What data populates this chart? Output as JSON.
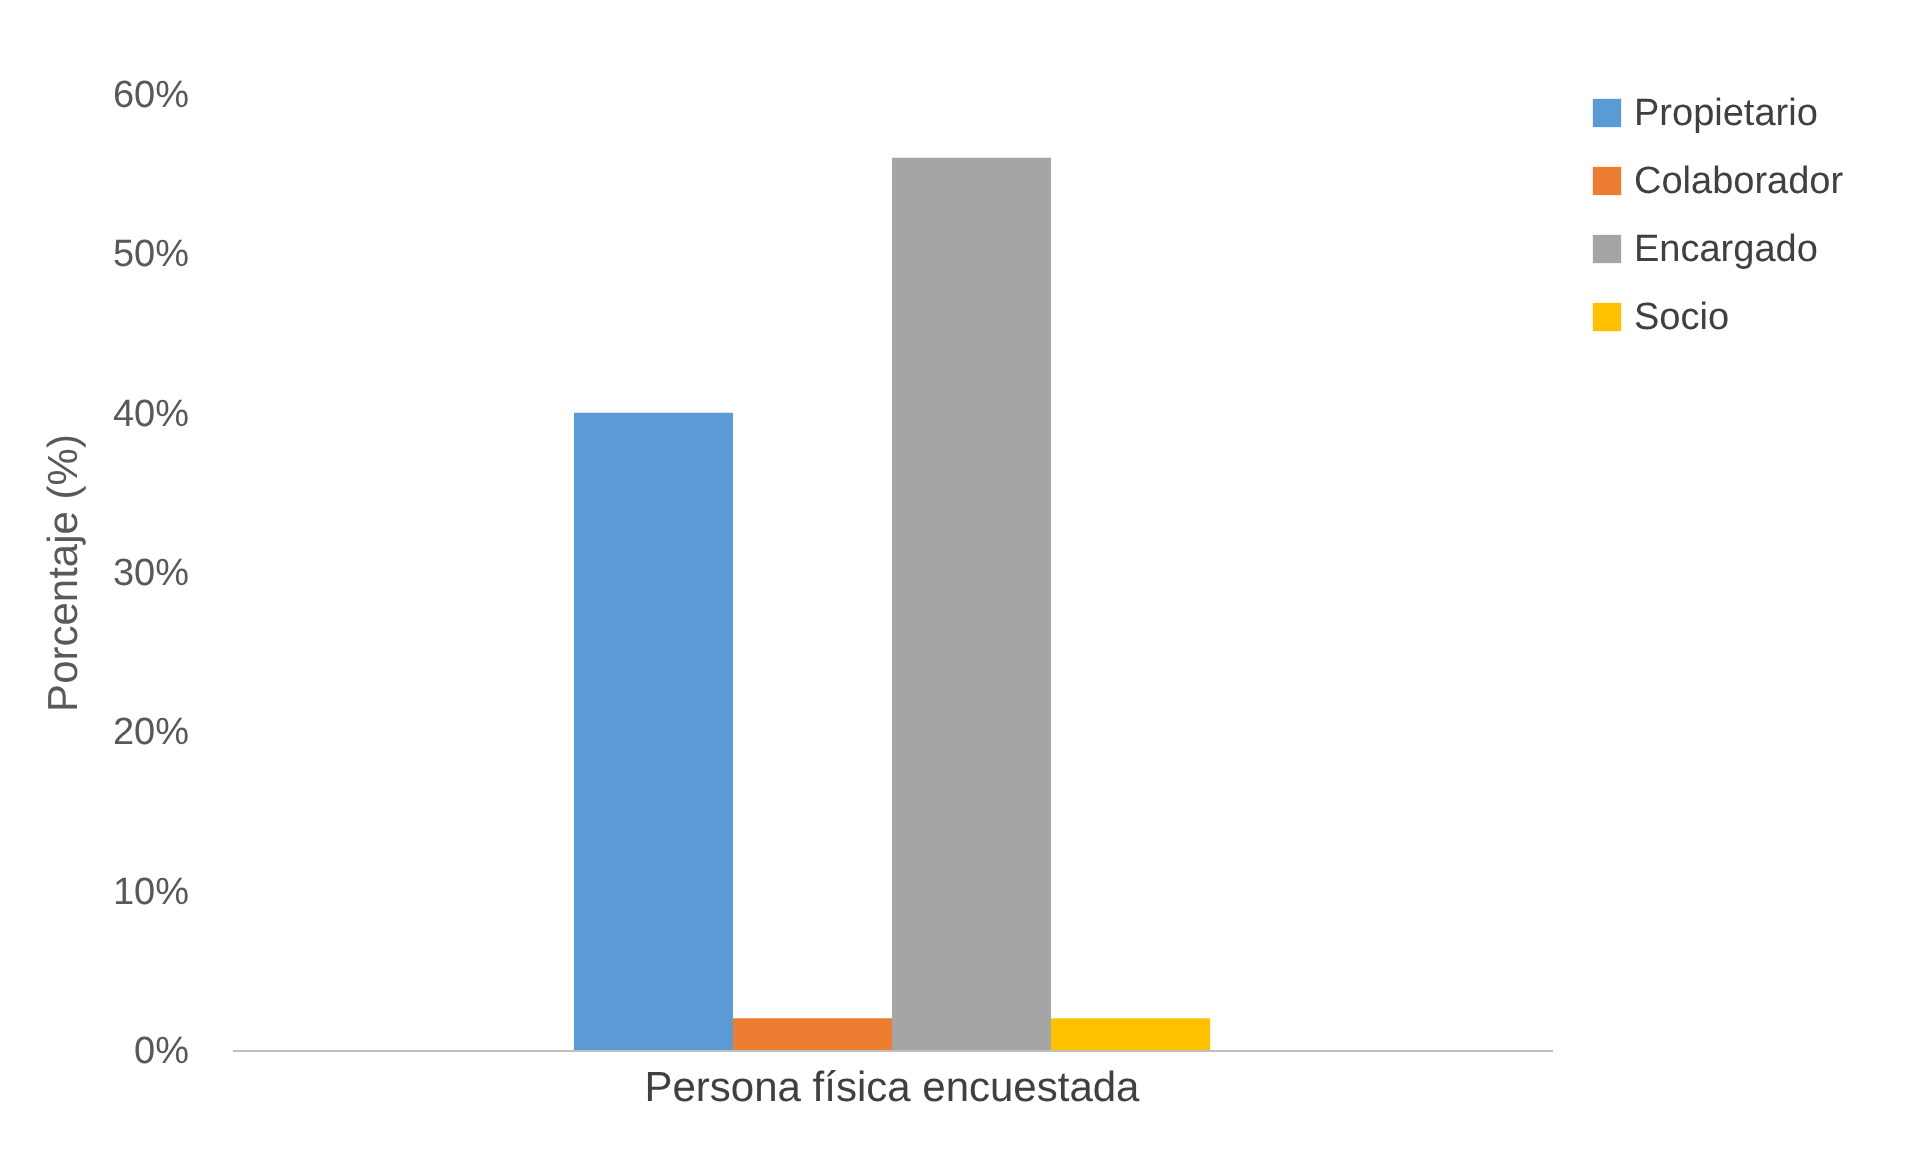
{
  "chart_data": {
    "type": "bar",
    "ylabel": "Porcentaje (%)",
    "categories": [
      "Persona física encuestada"
    ],
    "series": [
      {
        "name": "Propietario",
        "color": "#5b9bd5",
        "values": [
          40
        ]
      },
      {
        "name": "Colaborador",
        "color": "#ed7d31",
        "values": [
          2
        ]
      },
      {
        "name": "Encargado",
        "color": "#a5a5a5",
        "values": [
          56
        ]
      },
      {
        "name": "Socio",
        "color": "#ffc000",
        "values": [
          2
        ]
      }
    ],
    "ylim": [
      0,
      60
    ],
    "yticks": [
      {
        "value": 0,
        "label": "0%"
      },
      {
        "value": 10,
        "label": "10%"
      },
      {
        "value": 20,
        "label": "20%"
      },
      {
        "value": 30,
        "label": "30%"
      },
      {
        "value": 40,
        "label": "40%"
      },
      {
        "value": 50,
        "label": "50%"
      },
      {
        "value": 60,
        "label": "60%"
      }
    ],
    "grid": false,
    "legend": "right"
  }
}
